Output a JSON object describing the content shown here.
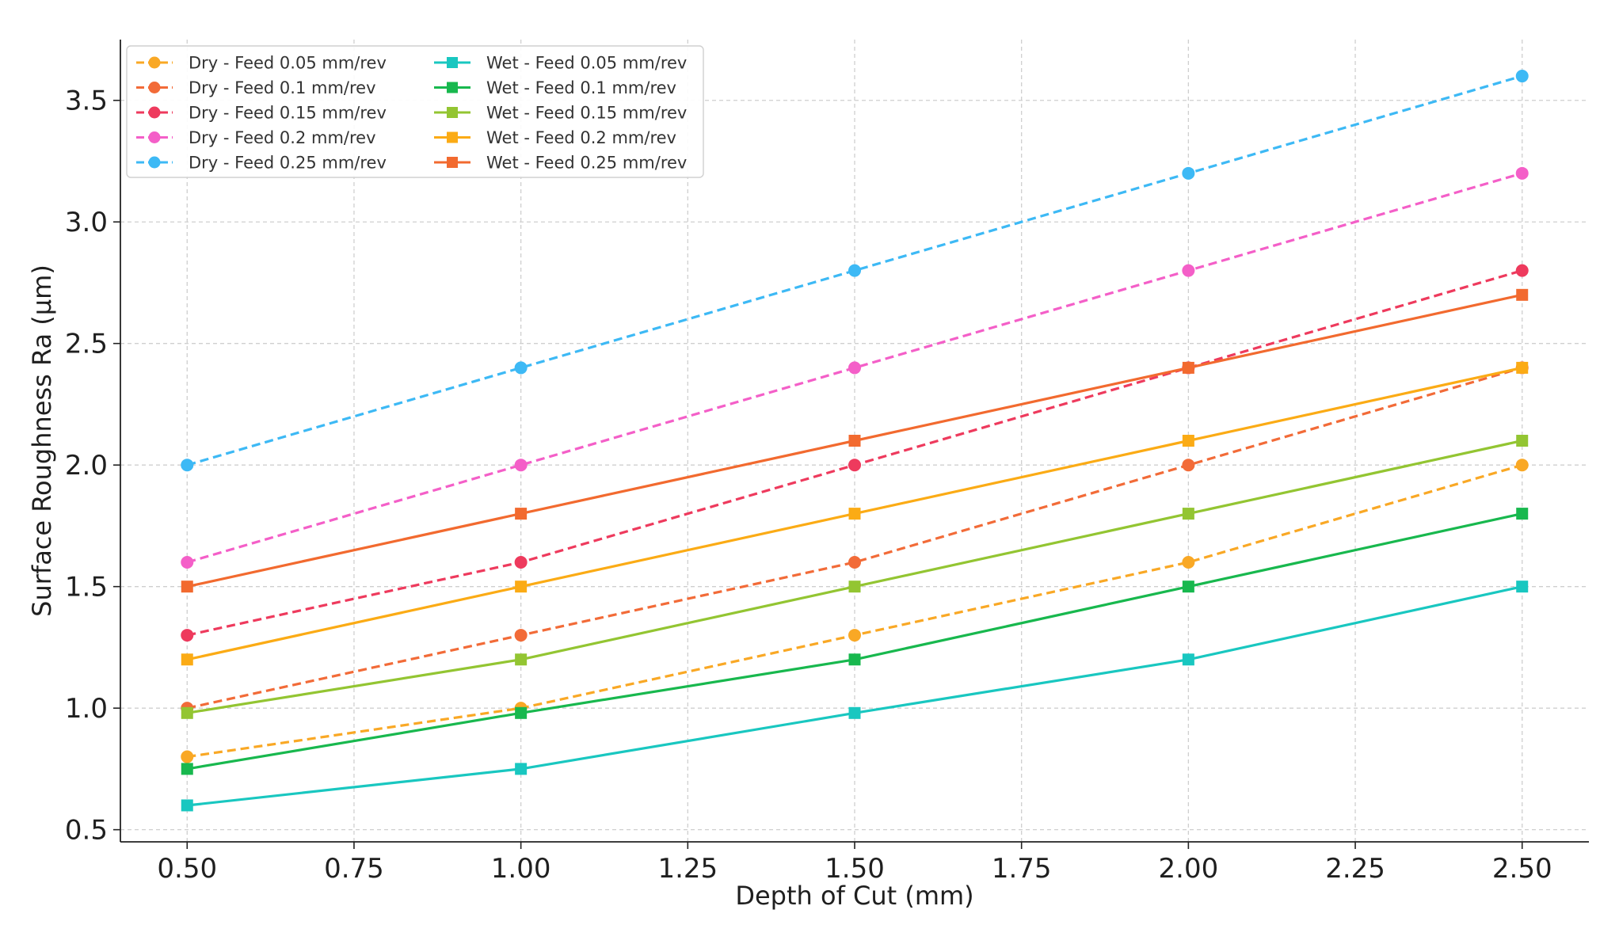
{
  "chart_data": {
    "type": "line",
    "title": "",
    "xlabel": "Depth of Cut (mm)",
    "ylabel": "Surface Roughness Ra (µm)",
    "x": [
      0.5,
      1.0,
      1.5,
      2.0,
      2.5
    ],
    "xlim": [
      0.4,
      2.6
    ],
    "ylim": [
      0.45,
      3.75
    ],
    "xticks": [
      "0.50",
      "0.75",
      "1.00",
      "1.25",
      "1.50",
      "1.75",
      "2.00",
      "2.25",
      "2.50"
    ],
    "yticks": [
      "0.5",
      "1.0",
      "1.5",
      "2.0",
      "2.5",
      "3.0",
      "3.5"
    ],
    "grid": true,
    "legend_position": "top-left",
    "legend_columns": 2,
    "series": [
      {
        "name": "Dry - Feed 0.05 mm/rev",
        "color": "#f9a825",
        "style": "dashed",
        "marker": "circle",
        "values": [
          0.8,
          1.0,
          1.3,
          1.6,
          2.0
        ]
      },
      {
        "name": "Dry - Feed 0.1 mm/rev",
        "color": "#f26b38",
        "style": "dashed",
        "marker": "circle",
        "values": [
          1.0,
          1.3,
          1.6,
          2.0,
          2.4
        ]
      },
      {
        "name": "Dry - Feed 0.15 mm/rev",
        "color": "#ee3a5d",
        "style": "dashed",
        "marker": "circle",
        "values": [
          1.3,
          1.6,
          2.0,
          2.4,
          2.8
        ]
      },
      {
        "name": "Dry - Feed 0.2 mm/rev",
        "color": "#f45fc8",
        "style": "dashed",
        "marker": "circle",
        "values": [
          1.6,
          2.0,
          2.4,
          2.8,
          3.2
        ]
      },
      {
        "name": "Dry - Feed 0.25 mm/rev",
        "color": "#3db9f5",
        "style": "dashed",
        "marker": "circle",
        "values": [
          2.0,
          2.4,
          2.8,
          3.2,
          3.6
        ]
      },
      {
        "name": "Wet - Feed 0.05 mm/rev",
        "color": "#19c7c0",
        "style": "solid",
        "marker": "square",
        "values": [
          0.6,
          0.75,
          0.98,
          1.2,
          1.5
        ]
      },
      {
        "name": "Wet - Feed 0.1 mm/rev",
        "color": "#18b84e",
        "style": "solid",
        "marker": "square",
        "values": [
          0.75,
          0.98,
          1.2,
          1.5,
          1.8
        ]
      },
      {
        "name": "Wet - Feed 0.15 mm/rev",
        "color": "#93c532",
        "style": "solid",
        "marker": "square",
        "values": [
          0.98,
          1.2,
          1.5,
          1.8,
          2.1
        ]
      },
      {
        "name": "Wet - Feed 0.2 mm/rev",
        "color": "#fbab15",
        "style": "solid",
        "marker": "square",
        "values": [
          1.2,
          1.5,
          1.8,
          2.1,
          2.4
        ]
      },
      {
        "name": "Wet - Feed 0.25 mm/rev",
        "color": "#f26a2f",
        "style": "solid",
        "marker": "square",
        "values": [
          1.5,
          1.8,
          2.1,
          2.4,
          2.7
        ]
      }
    ]
  }
}
